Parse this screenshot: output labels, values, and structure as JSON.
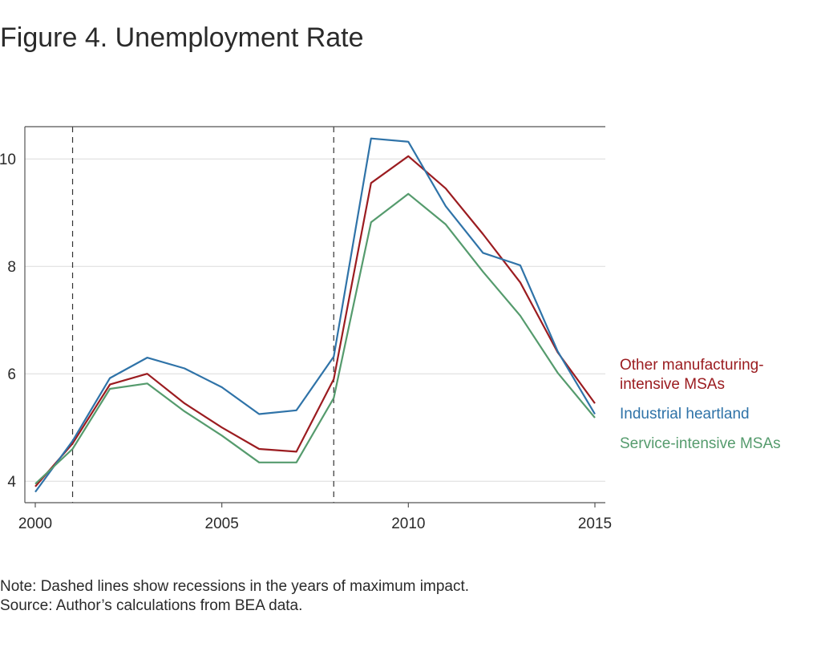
{
  "title": "Figure 4. Unemployment Rate",
  "note": "Note: Dashed lines show recessions in the years of maximum impact.",
  "source": "Source: Author’s calculations from BEA data.",
  "chart_data": {
    "type": "line",
    "xlim": [
      2000,
      2015
    ],
    "ylim": [
      3.6,
      10.6
    ],
    "x_ticks": [
      2000,
      2005,
      2010,
      2015
    ],
    "y_ticks": [
      4,
      6,
      8,
      10
    ],
    "grid": true,
    "legend_position": "right",
    "recession_years": [
      2001,
      2008
    ],
    "x": [
      2000,
      2001,
      2002,
      2003,
      2004,
      2005,
      2006,
      2007,
      2008,
      2009,
      2010,
      2011,
      2012,
      2013,
      2014,
      2015
    ],
    "series": [
      {
        "name": "Other manufacturing-\nintensive MSAs",
        "color": "#9b1c20",
        "values": [
          3.9,
          4.7,
          5.8,
          6.0,
          5.45,
          5.0,
          4.6,
          4.55,
          5.9,
          9.55,
          10.05,
          9.45,
          8.6,
          7.7,
          6.4,
          5.45
        ]
      },
      {
        "name": "Industrial heartland",
        "color": "#2f73a8",
        "values": [
          3.8,
          4.75,
          5.92,
          6.3,
          6.1,
          5.75,
          5.25,
          5.32,
          6.32,
          10.38,
          10.32,
          9.12,
          8.25,
          8.02,
          6.42,
          5.25
        ]
      },
      {
        "name": "Service-intensive MSAs",
        "color": "#559b6d",
        "values": [
          3.95,
          4.6,
          5.72,
          5.82,
          5.3,
          4.85,
          4.35,
          4.35,
          5.55,
          8.82,
          9.35,
          8.78,
          7.9,
          7.08,
          6.02,
          5.18
        ]
      }
    ]
  }
}
